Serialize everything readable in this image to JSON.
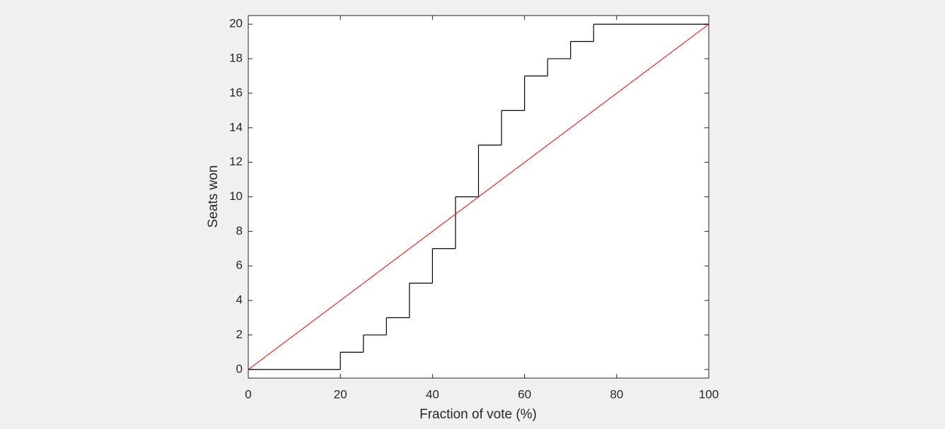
{
  "chart_data": {
    "type": "line",
    "x_label": "Fraction of vote (%)",
    "y_label": "Seats won",
    "xlim": [
      0,
      100
    ],
    "ylim": [
      -0.5,
      20.5
    ],
    "xticks": [
      0,
      20,
      40,
      60,
      80,
      100
    ],
    "yticks": [
      0,
      2,
      4,
      6,
      8,
      10,
      12,
      14,
      16,
      18,
      20
    ],
    "grid": false,
    "series": [
      {
        "color": "#000000",
        "step": "post",
        "x": [
          0,
          20,
          25,
          30,
          35,
          40,
          45,
          50,
          55,
          60,
          65,
          70,
          75,
          100
        ],
        "values": [
          0,
          1,
          2,
          3,
          5,
          7,
          10,
          13,
          15,
          17,
          18,
          19,
          20,
          20
        ]
      },
      {
        "color": "#ff0000",
        "x": [
          0,
          100
        ],
        "values": [
          0,
          20
        ]
      }
    ]
  }
}
